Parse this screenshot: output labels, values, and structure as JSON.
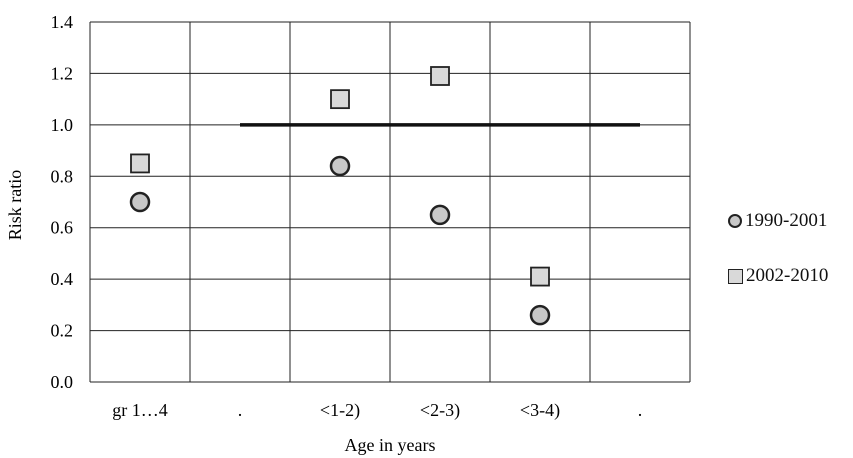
{
  "chart_data": {
    "type": "scatter",
    "categories": [
      "gr 1…4",
      ".",
      "<1-2)",
      "<2-3)",
      "<3-4)",
      "."
    ],
    "series": [
      {
        "name": "1990-2001",
        "marker": "circle",
        "color": "#c8c8c8",
        "values": [
          0.7,
          null,
          0.84,
          0.65,
          0.26,
          null
        ]
      },
      {
        "name": "2002-2010",
        "marker": "square",
        "color": "#d9d9d9",
        "values": [
          0.85,
          null,
          1.1,
          1.19,
          0.41,
          null
        ]
      }
    ],
    "reference_line": {
      "y": 1.0,
      "from_category": 1,
      "to_category": 5
    },
    "xlabel": "Age in years",
    "ylabel": "Risk ratio",
    "ylim": [
      0,
      1.4
    ],
    "yticks": [
      "0.0",
      "0.2",
      "0.4",
      "0.6",
      "0.8",
      "1.0",
      "1.2",
      "1.4"
    ],
    "grid": true,
    "legend_position": "right"
  }
}
